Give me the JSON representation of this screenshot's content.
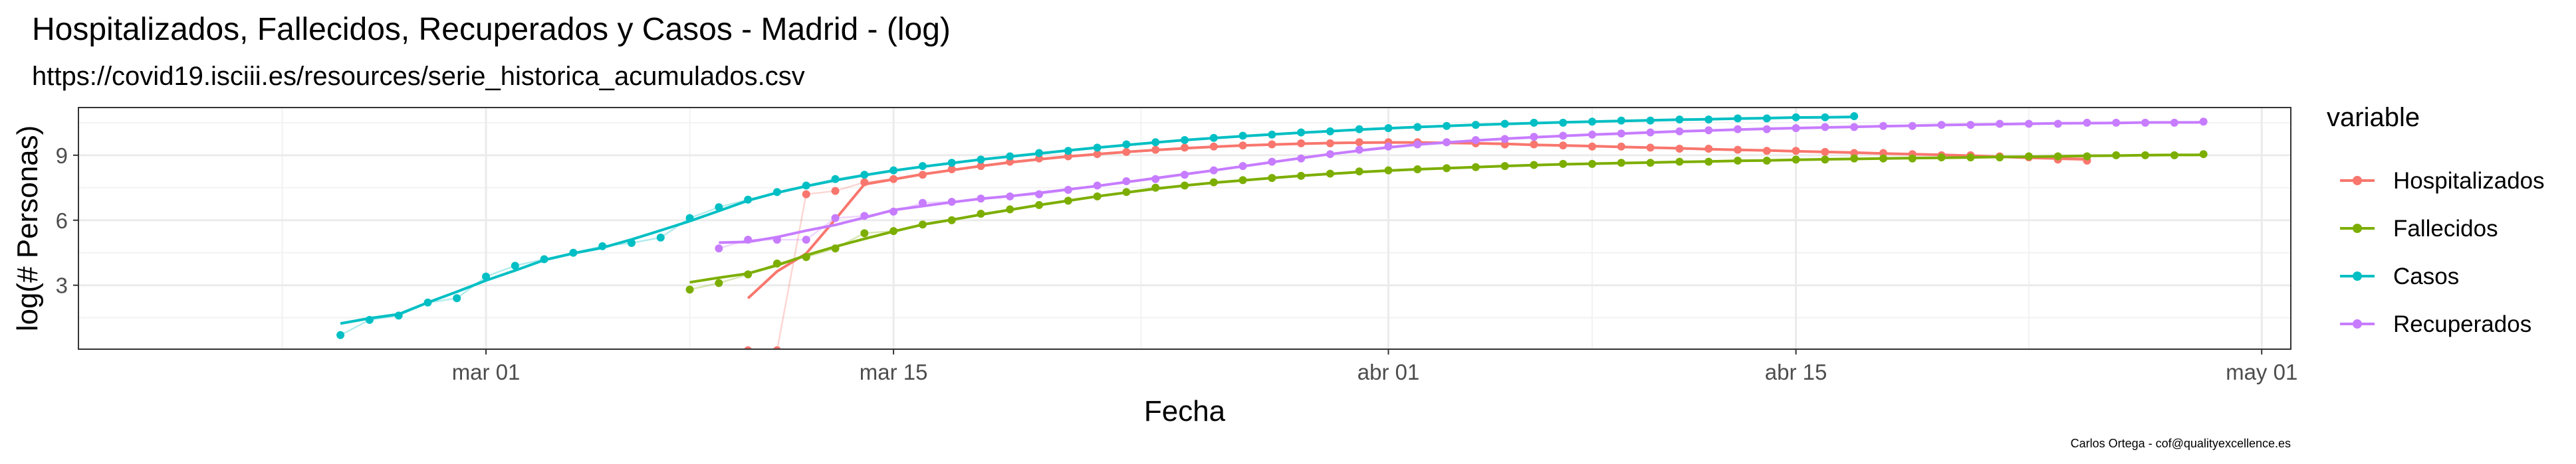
{
  "chart_data": {
    "type": "line",
    "title": "Hospitalizados, Fallecidos, Recuperados y Casos - Madrid - (log)",
    "subtitle": "https://covid19.isciii.es/resources/serie_historica_acumulados.csv",
    "xlabel": "Fecha",
    "ylabel": "log(# Personas)",
    "caption": "Carlos Ortega - cof@qualityexcellence.es",
    "x_type": "date",
    "xlim": [
      "2020-02-16",
      "2020-05-02"
    ],
    "ylim": [
      0.05,
      11.2
    ],
    "x_ticks": [
      {
        "date": "2020-03-01",
        "label": "mar 01"
      },
      {
        "date": "2020-03-15",
        "label": "mar 15"
      },
      {
        "date": "2020-04-01",
        "label": "abr 01"
      },
      {
        "date": "2020-04-15",
        "label": "abr 15"
      },
      {
        "date": "2020-05-01",
        "label": "may 01"
      }
    ],
    "y_ticks": [
      3,
      6,
      9
    ],
    "grid": true,
    "legend_title": "variable",
    "legend_position": "right",
    "smooth_lines": true,
    "series": [
      {
        "name": "Hospitalizados",
        "color": "#F8766D",
        "x": [
          "2020-03-10",
          "2020-03-11",
          "2020-03-12",
          "2020-03-13",
          "2020-03-14",
          "2020-03-15",
          "2020-03-16",
          "2020-03-17",
          "2020-03-18",
          "2020-03-19",
          "2020-03-20",
          "2020-03-21",
          "2020-03-22",
          "2020-03-23",
          "2020-03-24",
          "2020-03-25",
          "2020-03-26",
          "2020-03-27",
          "2020-03-28",
          "2020-03-29",
          "2020-03-30",
          "2020-03-31",
          "2020-04-01",
          "2020-04-02",
          "2020-04-03",
          "2020-04-04",
          "2020-04-05",
          "2020-04-06",
          "2020-04-07",
          "2020-04-08",
          "2020-04-09",
          "2020-04-10",
          "2020-04-11",
          "2020-04-12",
          "2020-04-13",
          "2020-04-14",
          "2020-04-15",
          "2020-04-16",
          "2020-04-17",
          "2020-04-18",
          "2020-04-19",
          "2020-04-20",
          "2020-04-21",
          "2020-04-22",
          "2020-04-23",
          "2020-04-24",
          "2020-04-25"
        ],
        "y": [
          0,
          0,
          7.2,
          7.35,
          7.75,
          7.9,
          8.1,
          8.35,
          8.5,
          8.7,
          8.85,
          8.95,
          9.05,
          9.15,
          9.25,
          9.35,
          9.4,
          9.45,
          9.5,
          9.55,
          9.55,
          9.6,
          9.6,
          9.6,
          9.6,
          9.55,
          9.5,
          9.5,
          9.45,
          9.4,
          9.4,
          9.35,
          9.3,
          9.3,
          9.25,
          9.2,
          9.2,
          9.15,
          9.1,
          9.1,
          9.05,
          9.0,
          9.0,
          8.95,
          8.9,
          8.8,
          8.75
        ]
      },
      {
        "name": "Fallecidos",
        "color": "#7CAE00",
        "x": [
          "2020-03-08",
          "2020-03-09",
          "2020-03-10",
          "2020-03-11",
          "2020-03-12",
          "2020-03-13",
          "2020-03-14",
          "2020-03-15",
          "2020-03-16",
          "2020-03-17",
          "2020-03-18",
          "2020-03-19",
          "2020-03-20",
          "2020-03-21",
          "2020-03-22",
          "2020-03-23",
          "2020-03-24",
          "2020-03-25",
          "2020-03-26",
          "2020-03-27",
          "2020-03-28",
          "2020-03-29",
          "2020-03-30",
          "2020-03-31",
          "2020-04-01",
          "2020-04-02",
          "2020-04-03",
          "2020-04-04",
          "2020-04-05",
          "2020-04-06",
          "2020-04-07",
          "2020-04-08",
          "2020-04-09",
          "2020-04-10",
          "2020-04-11",
          "2020-04-12",
          "2020-04-13",
          "2020-04-14",
          "2020-04-15",
          "2020-04-16",
          "2020-04-17",
          "2020-04-18",
          "2020-04-19",
          "2020-04-20",
          "2020-04-21",
          "2020-04-22",
          "2020-04-23",
          "2020-04-24",
          "2020-04-25",
          "2020-04-26",
          "2020-04-27",
          "2020-04-28",
          "2020-04-29"
        ],
        "y": [
          2.8,
          3.1,
          3.5,
          4.0,
          4.3,
          4.7,
          5.4,
          5.5,
          5.8,
          6.0,
          6.3,
          6.5,
          6.7,
          6.9,
          7.1,
          7.3,
          7.5,
          7.6,
          7.75,
          7.85,
          7.95,
          8.05,
          8.15,
          8.25,
          8.3,
          8.35,
          8.4,
          8.45,
          8.5,
          8.55,
          8.6,
          8.6,
          8.65,
          8.65,
          8.7,
          8.7,
          8.75,
          8.75,
          8.8,
          8.8,
          8.85,
          8.85,
          8.85,
          8.9,
          8.9,
          8.9,
          8.95,
          8.95,
          8.95,
          9.0,
          9.0,
          9.0,
          9.05
        ]
      },
      {
        "name": "Casos",
        "color": "#00BFC4",
        "x": [
          "2020-02-25",
          "2020-02-26",
          "2020-02-27",
          "2020-02-28",
          "2020-02-29",
          "2020-03-01",
          "2020-03-02",
          "2020-03-03",
          "2020-03-04",
          "2020-03-05",
          "2020-03-06",
          "2020-03-07",
          "2020-03-08",
          "2020-03-09",
          "2020-03-10",
          "2020-03-11",
          "2020-03-12",
          "2020-03-13",
          "2020-03-14",
          "2020-03-15",
          "2020-03-16",
          "2020-03-17",
          "2020-03-18",
          "2020-03-19",
          "2020-03-20",
          "2020-03-21",
          "2020-03-22",
          "2020-03-23",
          "2020-03-24",
          "2020-03-25",
          "2020-03-26",
          "2020-03-27",
          "2020-03-28",
          "2020-03-29",
          "2020-03-30",
          "2020-03-31",
          "2020-04-01",
          "2020-04-02",
          "2020-04-03",
          "2020-04-04",
          "2020-04-05",
          "2020-04-06",
          "2020-04-07",
          "2020-04-08",
          "2020-04-09",
          "2020-04-10",
          "2020-04-11",
          "2020-04-12",
          "2020-04-13",
          "2020-04-14",
          "2020-04-15",
          "2020-04-16",
          "2020-04-17"
        ],
        "y": [
          0.7,
          1.4,
          1.6,
          2.2,
          2.4,
          3.4,
          3.9,
          4.2,
          4.5,
          4.8,
          4.95,
          5.2,
          6.1,
          6.6,
          6.95,
          7.3,
          7.6,
          7.9,
          8.1,
          8.3,
          8.5,
          8.65,
          8.8,
          8.95,
          9.1,
          9.2,
          9.35,
          9.5,
          9.6,
          9.7,
          9.8,
          9.9,
          9.95,
          10.05,
          10.1,
          10.2,
          10.25,
          10.3,
          10.35,
          10.4,
          10.45,
          10.5,
          10.5,
          10.55,
          10.6,
          10.6,
          10.65,
          10.65,
          10.7,
          10.7,
          10.75,
          10.75,
          10.8
        ]
      },
      {
        "name": "Recuperados",
        "color": "#C77CFF",
        "x": [
          "2020-03-09",
          "2020-03-10",
          "2020-03-11",
          "2020-03-12",
          "2020-03-13",
          "2020-03-14",
          "2020-03-15",
          "2020-03-16",
          "2020-03-17",
          "2020-03-18",
          "2020-03-19",
          "2020-03-20",
          "2020-03-21",
          "2020-03-22",
          "2020-03-23",
          "2020-03-24",
          "2020-03-25",
          "2020-03-26",
          "2020-03-27",
          "2020-03-28",
          "2020-03-29",
          "2020-03-30",
          "2020-03-31",
          "2020-04-01",
          "2020-04-02",
          "2020-04-03",
          "2020-04-04",
          "2020-04-05",
          "2020-04-06",
          "2020-04-07",
          "2020-04-08",
          "2020-04-09",
          "2020-04-10",
          "2020-04-11",
          "2020-04-12",
          "2020-04-13",
          "2020-04-14",
          "2020-04-15",
          "2020-04-16",
          "2020-04-17",
          "2020-04-18",
          "2020-04-19",
          "2020-04-20",
          "2020-04-21",
          "2020-04-22",
          "2020-04-23",
          "2020-04-24",
          "2020-04-25",
          "2020-04-26",
          "2020-04-27",
          "2020-04-28",
          "2020-04-29"
        ],
        "y": [
          4.7,
          5.1,
          5.1,
          5.1,
          6.1,
          6.2,
          6.4,
          6.8,
          6.85,
          7.0,
          7.1,
          7.2,
          7.4,
          7.6,
          7.8,
          7.9,
          8.1,
          8.3,
          8.5,
          8.7,
          8.85,
          9.05,
          9.25,
          9.4,
          9.5,
          9.6,
          9.7,
          9.75,
          9.85,
          9.9,
          9.95,
          10.0,
          10.05,
          10.1,
          10.15,
          10.2,
          10.2,
          10.25,
          10.3,
          10.3,
          10.35,
          10.35,
          10.4,
          10.4,
          10.45,
          10.45,
          10.45,
          10.5,
          10.5,
          10.5,
          10.5,
          10.55
        ]
      }
    ]
  }
}
